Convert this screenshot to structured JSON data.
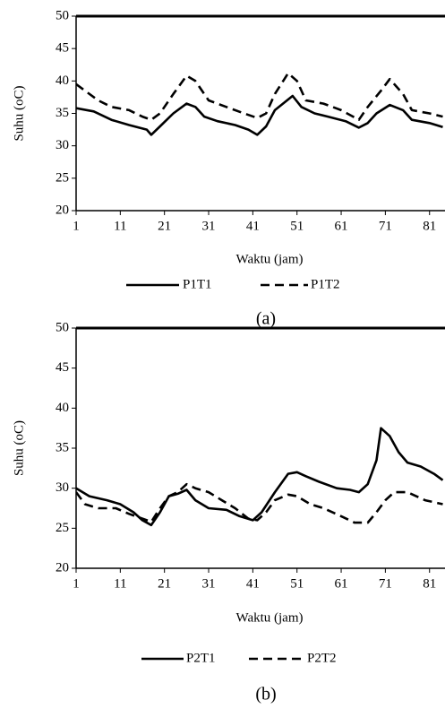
{
  "chart_data": [
    {
      "type": "line",
      "panel_label": "(a)",
      "x_label": "Waktu (jam)",
      "y_label": "Suhu (oC)",
      "xlim": [
        1,
        84.5
      ],
      "ylim": [
        20,
        50
      ],
      "xticks": [
        1,
        11,
        21,
        31,
        41,
        51,
        61,
        71,
        81
      ],
      "yticks": [
        20,
        25,
        30,
        35,
        40,
        45,
        50
      ],
      "series": [
        {
          "name": "P1T1",
          "color": "#000000",
          "dash": false,
          "x": [
            1,
            5,
            9,
            13,
            17,
            18,
            20,
            23,
            26,
            28,
            30,
            33,
            37,
            40,
            42,
            44,
            46,
            50,
            52,
            55,
            58,
            62,
            65,
            67,
            69,
            72,
            75,
            77,
            81,
            84
          ],
          "values": [
            35.8,
            35.3,
            34,
            33.2,
            32.5,
            31.7,
            33,
            35,
            36.5,
            36,
            34.5,
            33.8,
            33.2,
            32.5,
            31.7,
            33,
            35.5,
            37.7,
            36,
            35,
            34.5,
            33.8,
            32.8,
            33.5,
            35,
            36.3,
            35.5,
            34,
            33.5,
            32.9
          ]
        },
        {
          "name": "P1T2",
          "color": "#000000",
          "dash": true,
          "x": [
            1,
            3,
            6,
            9,
            13,
            16,
            18,
            20,
            23,
            26,
            28,
            31,
            35,
            39,
            42,
            44,
            46,
            49,
            51,
            53,
            57,
            61,
            65,
            67,
            70,
            72,
            75,
            77,
            81,
            84
          ],
          "values": [
            39.5,
            38.5,
            37,
            36,
            35.5,
            34.5,
            34,
            35,
            38,
            40.8,
            40,
            37,
            36,
            35,
            34.3,
            35,
            38,
            41.2,
            40,
            37,
            36.5,
            35.5,
            34,
            36,
            38.5,
            40.3,
            38,
            35.5,
            35,
            34.5
          ]
        }
      ]
    },
    {
      "type": "line",
      "panel_label": "(b)",
      "x_label": "Waktu (jam)",
      "y_label": "Suhu (oC)",
      "xlim": [
        1,
        84.5
      ],
      "ylim": [
        20,
        50
      ],
      "xticks": [
        1,
        11,
        21,
        31,
        41,
        51,
        61,
        71,
        81
      ],
      "yticks": [
        20,
        25,
        30,
        35,
        40,
        45,
        50
      ],
      "series": [
        {
          "name": "P2T1",
          "color": "#000000",
          "dash": false,
          "x": [
            1,
            4,
            8,
            11,
            14,
            16,
            18,
            20,
            22,
            24,
            26,
            28,
            31,
            35,
            38,
            41,
            43,
            46,
            49,
            51,
            53,
            56,
            60,
            63,
            65,
            67,
            69,
            70,
            72,
            74,
            76,
            79,
            82,
            84
          ],
          "values": [
            30,
            29,
            28.5,
            28,
            27,
            26,
            25.4,
            27,
            29,
            29.3,
            29.8,
            28.5,
            27.5,
            27.3,
            26.5,
            26,
            27,
            29.5,
            31.8,
            32,
            31.5,
            30.8,
            30,
            29.8,
            29.5,
            30.5,
            33.5,
            37.5,
            36.5,
            34.5,
            33.2,
            32.7,
            31.8,
            31
          ]
        },
        {
          "name": "P2T2",
          "color": "#000000",
          "dash": true,
          "x": [
            1,
            3,
            6,
            10,
            13,
            16,
            18,
            20,
            22,
            24,
            26,
            28,
            31,
            34,
            37,
            40,
            42,
            44,
            46,
            49,
            51,
            54,
            57,
            61,
            64,
            67,
            69,
            71,
            73,
            76,
            80,
            84
          ],
          "values": [
            29.5,
            28,
            27.5,
            27.5,
            26.8,
            26.2,
            25.8,
            27.5,
            29,
            29.5,
            30.5,
            30,
            29.5,
            28.5,
            27.5,
            26.2,
            26,
            27,
            28.5,
            29.2,
            29,
            28,
            27.5,
            26.5,
            25.7,
            25.7,
            27,
            28.5,
            29.5,
            29.5,
            28.5,
            28
          ]
        }
      ]
    }
  ]
}
